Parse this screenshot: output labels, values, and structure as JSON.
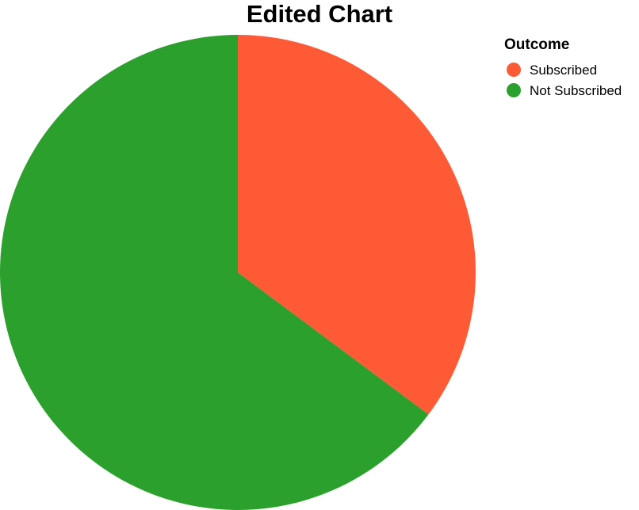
{
  "chart_data": {
    "type": "pie",
    "title": "Edited Chart",
    "legend": {
      "title": "Outcome",
      "placement": "top-right"
    },
    "categories": [
      "Subscribed",
      "Not Subscribed"
    ],
    "values": [
      35.2,
      64.8
    ],
    "colors": [
      "#ff5a36",
      "#2ca02c"
    ],
    "start_angle_deg": 0,
    "direction": "clockwise"
  }
}
